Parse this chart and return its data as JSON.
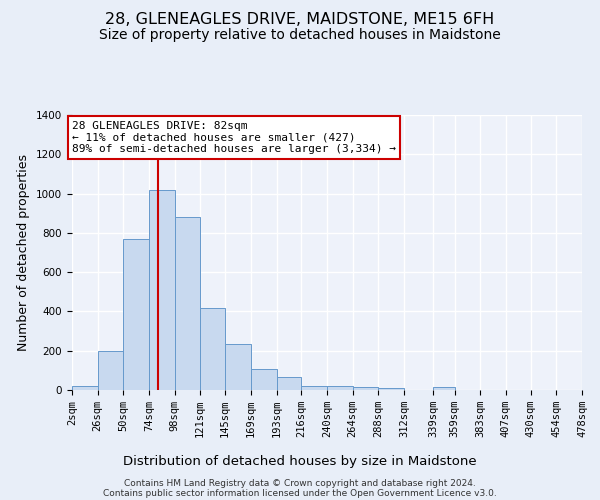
{
  "title": "28, GLENEAGLES DRIVE, MAIDSTONE, ME15 6FH",
  "subtitle": "Size of property relative to detached houses in Maidstone",
  "xlabel": "Distribution of detached houses by size in Maidstone",
  "ylabel": "Number of detached properties",
  "footer_line1": "Contains HM Land Registry data © Crown copyright and database right 2024.",
  "footer_line2": "Contains public sector information licensed under the Open Government Licence v3.0.",
  "bin_labels": [
    "2sqm",
    "26sqm",
    "50sqm",
    "74sqm",
    "98sqm",
    "121sqm",
    "145sqm",
    "169sqm",
    "193sqm",
    "216sqm",
    "240sqm",
    "264sqm",
    "288sqm",
    "312sqm",
    "339sqm",
    "359sqm",
    "383sqm",
    "407sqm",
    "430sqm",
    "454sqm",
    "478sqm"
  ],
  "bin_edges": [
    2,
    26,
    50,
    74,
    98,
    121,
    145,
    169,
    193,
    216,
    240,
    264,
    288,
    312,
    339,
    359,
    383,
    407,
    430,
    454,
    478
  ],
  "bar_heights": [
    20,
    200,
    770,
    1020,
    880,
    420,
    235,
    108,
    68,
    20,
    20,
    15,
    10,
    0,
    15,
    0,
    0,
    0,
    0,
    0
  ],
  "bar_color": "#c8d9ef",
  "bar_edge_color": "#6699cc",
  "vline_x": 82,
  "vline_color": "#cc0000",
  "annotation_line1": "28 GLENEAGLES DRIVE: 82sqm",
  "annotation_line2": "← 11% of detached houses are smaller (427)",
  "annotation_line3": "89% of semi-detached houses are larger (3,334) →",
  "annotation_box_color": "#ffffff",
  "annotation_box_edge": "#cc0000",
  "ylim": [
    0,
    1400
  ],
  "yticks": [
    0,
    200,
    400,
    600,
    800,
    1000,
    1200,
    1400
  ],
  "bg_color": "#e8eef8",
  "plot_bg_color": "#eef2fa",
  "grid_color": "#ffffff",
  "title_fontsize": 11.5,
  "subtitle_fontsize": 10,
  "xlabel_fontsize": 9.5,
  "ylabel_fontsize": 9,
  "tick_fontsize": 7.5,
  "annotation_fontsize": 8,
  "footer_fontsize": 6.5
}
